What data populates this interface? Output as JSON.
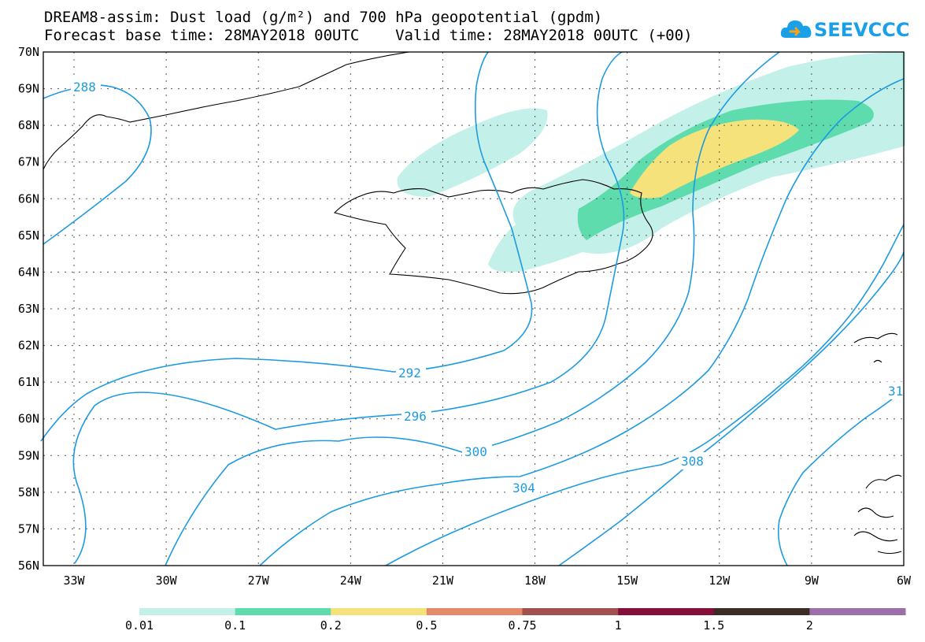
{
  "title": {
    "line1": "DREAM8-assim: Dust load (g/m²) and 700 hPa geopotential (gpdm)",
    "line2": "Forecast base time: 28MAY2018 00UTC    Valid time: 28MAY2018 00UTC (+00)"
  },
  "logo": {
    "text": "SEEVCCC",
    "icon": "cloud-icon",
    "color": "#1aa0e6"
  },
  "map": {
    "lat_labels": [
      "70N",
      "69N",
      "68N",
      "67N",
      "66N",
      "65N",
      "64N",
      "63N",
      "62N",
      "61N",
      "60N",
      "59N",
      "58N",
      "57N",
      "56N"
    ],
    "lon_labels": [
      "33W",
      "30W",
      "27W",
      "24W",
      "21W",
      "18W",
      "15W",
      "12W",
      "9W",
      "6W"
    ],
    "contour_color": "#1e9be0",
    "contour_labels": [
      {
        "text": "288"
      },
      {
        "text": "292"
      },
      {
        "text": "296"
      },
      {
        "text": "300"
      },
      {
        "text": "304"
      },
      {
        "text": "308"
      },
      {
        "text": "31"
      }
    ]
  },
  "colorbar": {
    "labels": [
      "0.01",
      "0.1",
      "0.2",
      "0.5",
      "0.75",
      "1",
      "1.5",
      "2"
    ],
    "colors": [
      "#c3f0e8",
      "#5fdcae",
      "#f5e27a",
      "#e58a68",
      "#a25050",
      "#860f3a",
      "#3c2c26",
      "#9b70a8"
    ]
  }
}
